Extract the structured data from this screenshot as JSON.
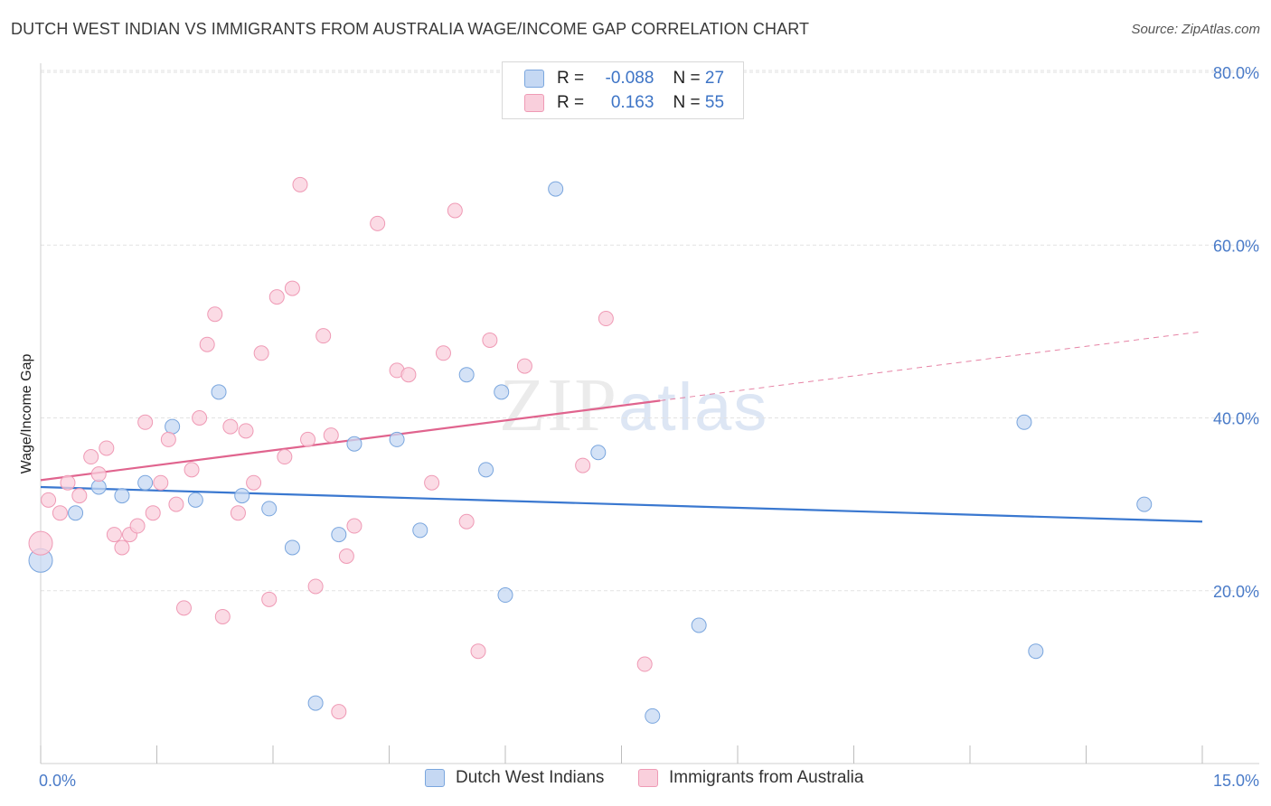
{
  "title": "DUTCH WEST INDIAN VS IMMIGRANTS FROM AUSTRALIA WAGE/INCOME GAP CORRELATION CHART",
  "source": "Source: ZipAtlas.com",
  "watermark": {
    "zip": "ZIP",
    "atlas": "atlas"
  },
  "colors": {
    "blue_fill": "#c5d8f3",
    "blue_stroke": "#7aa6de",
    "blue_line": "#3a78d0",
    "pink_fill": "#f9cfdc",
    "pink_stroke": "#ef9ab5",
    "pink_line": "#e0648e",
    "grid": "#e2e2e2",
    "tick_text": "#4a7bc8"
  },
  "legend": {
    "rows": [
      {
        "r_label": "R =",
        "r_value": "-0.088",
        "n_label": "N =",
        "n_value": "27"
      },
      {
        "r_label": "R =",
        "r_value": "0.163",
        "n_label": "N =",
        "n_value": "55"
      }
    ]
  },
  "bottom_legend": [
    "Dutch West Indians",
    "Immigrants from Australia"
  ],
  "chart_data": {
    "type": "scatter",
    "title": "DUTCH WEST INDIAN VS IMMIGRANTS FROM AUSTRALIA WAGE/INCOME GAP CORRELATION CHART",
    "ylabel": "Wage/Income Gap",
    "xlabel": "",
    "xlim": [
      0,
      15
    ],
    "ylim": [
      0,
      82
    ],
    "x_tick_labels": [
      "0.0%",
      "15.0%"
    ],
    "y_ticks": [
      20,
      40,
      60,
      80
    ],
    "y_tick_labels": [
      "20.0%",
      "40.0%",
      "60.0%",
      "80.0%"
    ],
    "grid": true,
    "series": [
      {
        "name": "Dutch West Indians",
        "color": "blue",
        "points": [
          [
            0.0,
            23.5,
            3
          ],
          [
            0.45,
            29.0,
            1
          ],
          [
            0.75,
            32.0,
            1
          ],
          [
            1.05,
            31.0,
            1
          ],
          [
            1.35,
            32.5,
            1
          ],
          [
            1.7,
            39.0,
            1
          ],
          [
            2.0,
            30.5,
            1
          ],
          [
            2.3,
            43.0,
            1
          ],
          [
            2.6,
            31.0,
            1
          ],
          [
            2.95,
            29.5,
            1
          ],
          [
            3.25,
            25.0,
            1
          ],
          [
            3.55,
            7.0,
            1
          ],
          [
            3.85,
            26.5,
            1
          ],
          [
            4.05,
            37.0,
            1
          ],
          [
            4.6,
            37.5,
            1
          ],
          [
            4.9,
            27.0,
            1
          ],
          [
            5.5,
            45.0,
            1
          ],
          [
            5.75,
            34.0,
            1
          ],
          [
            5.95,
            43.0,
            1
          ],
          [
            6.0,
            19.5,
            1
          ],
          [
            6.65,
            66.5,
            1
          ],
          [
            7.2,
            36.0,
            1
          ],
          [
            7.9,
            5.5,
            1
          ],
          [
            8.5,
            16.0,
            1
          ],
          [
            12.7,
            39.5,
            1
          ],
          [
            12.85,
            13.0,
            1
          ],
          [
            14.25,
            30.0,
            1
          ]
        ],
        "trend": {
          "x": [
            0.0,
            15.0
          ],
          "y": [
            32.0,
            28.0
          ]
        }
      },
      {
        "name": "Immigrants from Australia",
        "color": "pink",
        "points": [
          [
            0.0,
            25.5,
            3
          ],
          [
            0.1,
            30.5,
            1
          ],
          [
            0.25,
            29.0,
            1
          ],
          [
            0.35,
            32.5,
            1
          ],
          [
            0.5,
            31.0,
            1
          ],
          [
            0.65,
            35.5,
            1
          ],
          [
            0.75,
            33.5,
            1
          ],
          [
            0.85,
            36.5,
            1
          ],
          [
            0.95,
            26.5,
            1
          ],
          [
            1.05,
            25.0,
            1
          ],
          [
            1.15,
            26.5,
            1
          ],
          [
            1.25,
            27.5,
            1
          ],
          [
            1.35,
            39.5,
            1
          ],
          [
            1.45,
            29.0,
            1
          ],
          [
            1.55,
            32.5,
            1
          ],
          [
            1.65,
            37.5,
            1
          ],
          [
            1.75,
            30.0,
            1
          ],
          [
            1.85,
            18.0,
            1
          ],
          [
            1.95,
            34.0,
            1
          ],
          [
            2.05,
            40.0,
            1
          ],
          [
            2.15,
            48.5,
            1
          ],
          [
            2.25,
            52.0,
            1
          ],
          [
            2.35,
            17.0,
            1
          ],
          [
            2.45,
            39.0,
            1
          ],
          [
            2.55,
            29.0,
            1
          ],
          [
            2.65,
            38.5,
            1
          ],
          [
            2.75,
            32.5,
            1
          ],
          [
            2.85,
            47.5,
            1
          ],
          [
            2.95,
            19.0,
            1
          ],
          [
            3.05,
            54.0,
            1
          ],
          [
            3.15,
            35.5,
            1
          ],
          [
            3.25,
            55.0,
            1
          ],
          [
            3.35,
            67.0,
            1
          ],
          [
            3.45,
            37.5,
            1
          ],
          [
            3.55,
            20.5,
            1
          ],
          [
            3.65,
            49.5,
            1
          ],
          [
            3.75,
            38.0,
            1
          ],
          [
            3.85,
            6.0,
            1
          ],
          [
            3.95,
            24.0,
            1
          ],
          [
            4.05,
            27.5,
            1
          ],
          [
            4.35,
            62.5,
            1
          ],
          [
            4.6,
            45.5,
            1
          ],
          [
            4.75,
            45.0,
            1
          ],
          [
            5.05,
            32.5,
            1
          ],
          [
            5.2,
            47.5,
            1
          ],
          [
            5.35,
            64.0,
            1
          ],
          [
            5.5,
            28.0,
            1
          ],
          [
            5.65,
            13.0,
            1
          ],
          [
            5.8,
            49.0,
            1
          ],
          [
            6.25,
            46.0,
            1
          ],
          [
            7.0,
            34.5,
            1
          ],
          [
            7.3,
            51.5,
            1
          ],
          [
            7.8,
            11.5,
            1
          ]
        ],
        "trend": {
          "x": [
            0.0,
            8.0
          ],
          "y": [
            32.8,
            42.0
          ]
        },
        "trend_extension": {
          "x": [
            8.0,
            15.0
          ],
          "y": [
            42.0,
            50.0
          ]
        }
      }
    ]
  }
}
